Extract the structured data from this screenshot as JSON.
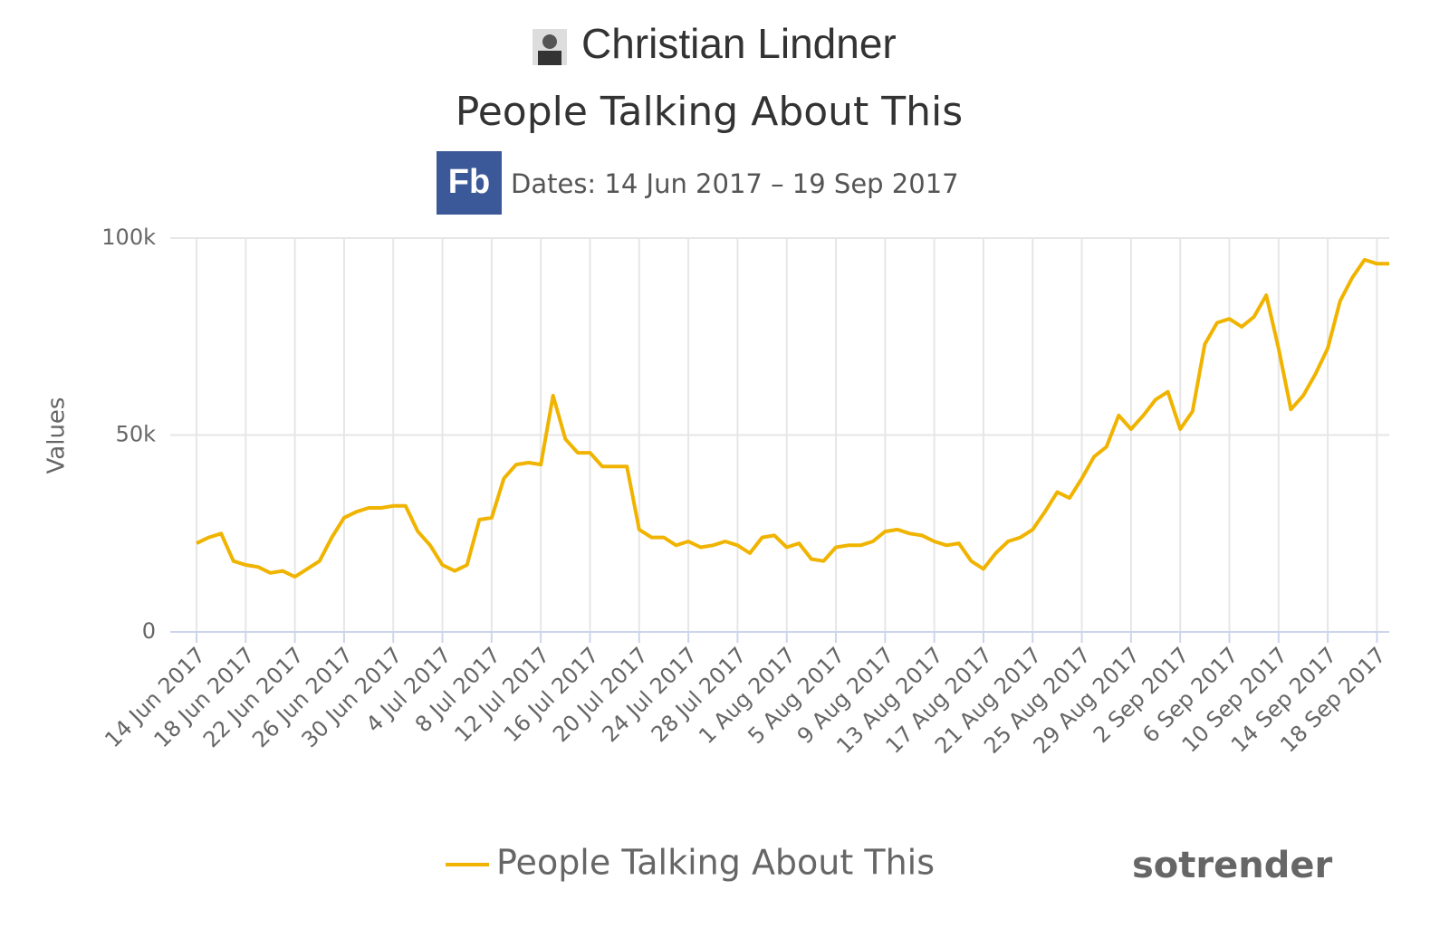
{
  "chart_data": {
    "type": "line",
    "header": "Christian Lindner",
    "title": "People Talking About This",
    "badge": "Fb",
    "subtitle": "Dates: 14 Jun 2017 – 19 Sep 2017",
    "y_label": "Values",
    "watermark": "sotrender",
    "categories": [
      "14 Jun 2017",
      null,
      null,
      null,
      "18 Jun 2017",
      null,
      null,
      null,
      "22 Jun 2017",
      null,
      null,
      null,
      "26 Jun 2017",
      null,
      null,
      null,
      "30 Jun 2017",
      null,
      null,
      null,
      "4 Jul 2017",
      null,
      null,
      null,
      "8 Jul 2017",
      null,
      null,
      null,
      "12 Jul 2017",
      null,
      null,
      null,
      "16 Jul 2017",
      null,
      null,
      null,
      "20 Jul 2017",
      null,
      null,
      null,
      "24 Jul 2017",
      null,
      null,
      null,
      "28 Jul 2017",
      null,
      null,
      null,
      "1 Aug 2017",
      null,
      null,
      null,
      "5 Aug 2017",
      null,
      null,
      null,
      "9 Aug 2017",
      null,
      null,
      null,
      "13 Aug 2017",
      null,
      null,
      null,
      "17 Aug 2017",
      null,
      null,
      null,
      "21 Aug 2017",
      null,
      null,
      null,
      "25 Aug 2017",
      null,
      null,
      null,
      "29 Aug 2017",
      null,
      null,
      null,
      "2 Sep 2017",
      null,
      null,
      null,
      "6 Sep 2017",
      null,
      null,
      null,
      "10 Sep 2017",
      null,
      null,
      null,
      "14 Sep 2017",
      null,
      null,
      null,
      "18 Sep 2017",
      null
    ],
    "series": [
      {
        "name": "People Talking About This",
        "color": "#f0b400",
        "values": [
          22500,
          24000,
          25000,
          18000,
          17000,
          16500,
          15000,
          15500,
          14000,
          16000,
          18000,
          24000,
          29000,
          30500,
          31500,
          31500,
          32000,
          32000,
          25500,
          22000,
          17000,
          15500,
          17000,
          28500,
          29000,
          39000,
          42500,
          43000,
          42500,
          60000,
          49000,
          45500,
          45500,
          42000,
          42000,
          42000,
          26000,
          24000,
          24000,
          22000,
          23000,
          21500,
          22000,
          23000,
          22000,
          20000,
          24000,
          24500,
          21500,
          22500,
          18500,
          18000,
          21500,
          22000,
          22000,
          23000,
          25500,
          26000,
          25000,
          24500,
          23000,
          22000,
          22500,
          18000,
          16000,
          20000,
          23000,
          24000,
          26000,
          30500,
          35500,
          34000,
          39000,
          44500,
          47000,
          55000,
          51500,
          55000,
          59000,
          61000,
          51500,
          56000,
          73000,
          78500,
          79500,
          77500,
          80000,
          85500,
          72000,
          56500,
          60000,
          65500,
          72000,
          84000,
          90000,
          94500,
          93500,
          93500
        ]
      }
    ],
    "ylim": [
      0,
      100000
    ],
    "yticks": [
      {
        "value": 0,
        "label": "0"
      },
      {
        "value": 50000,
        "label": "50k"
      },
      {
        "value": 100000,
        "label": "100k"
      }
    ],
    "grid": true
  }
}
